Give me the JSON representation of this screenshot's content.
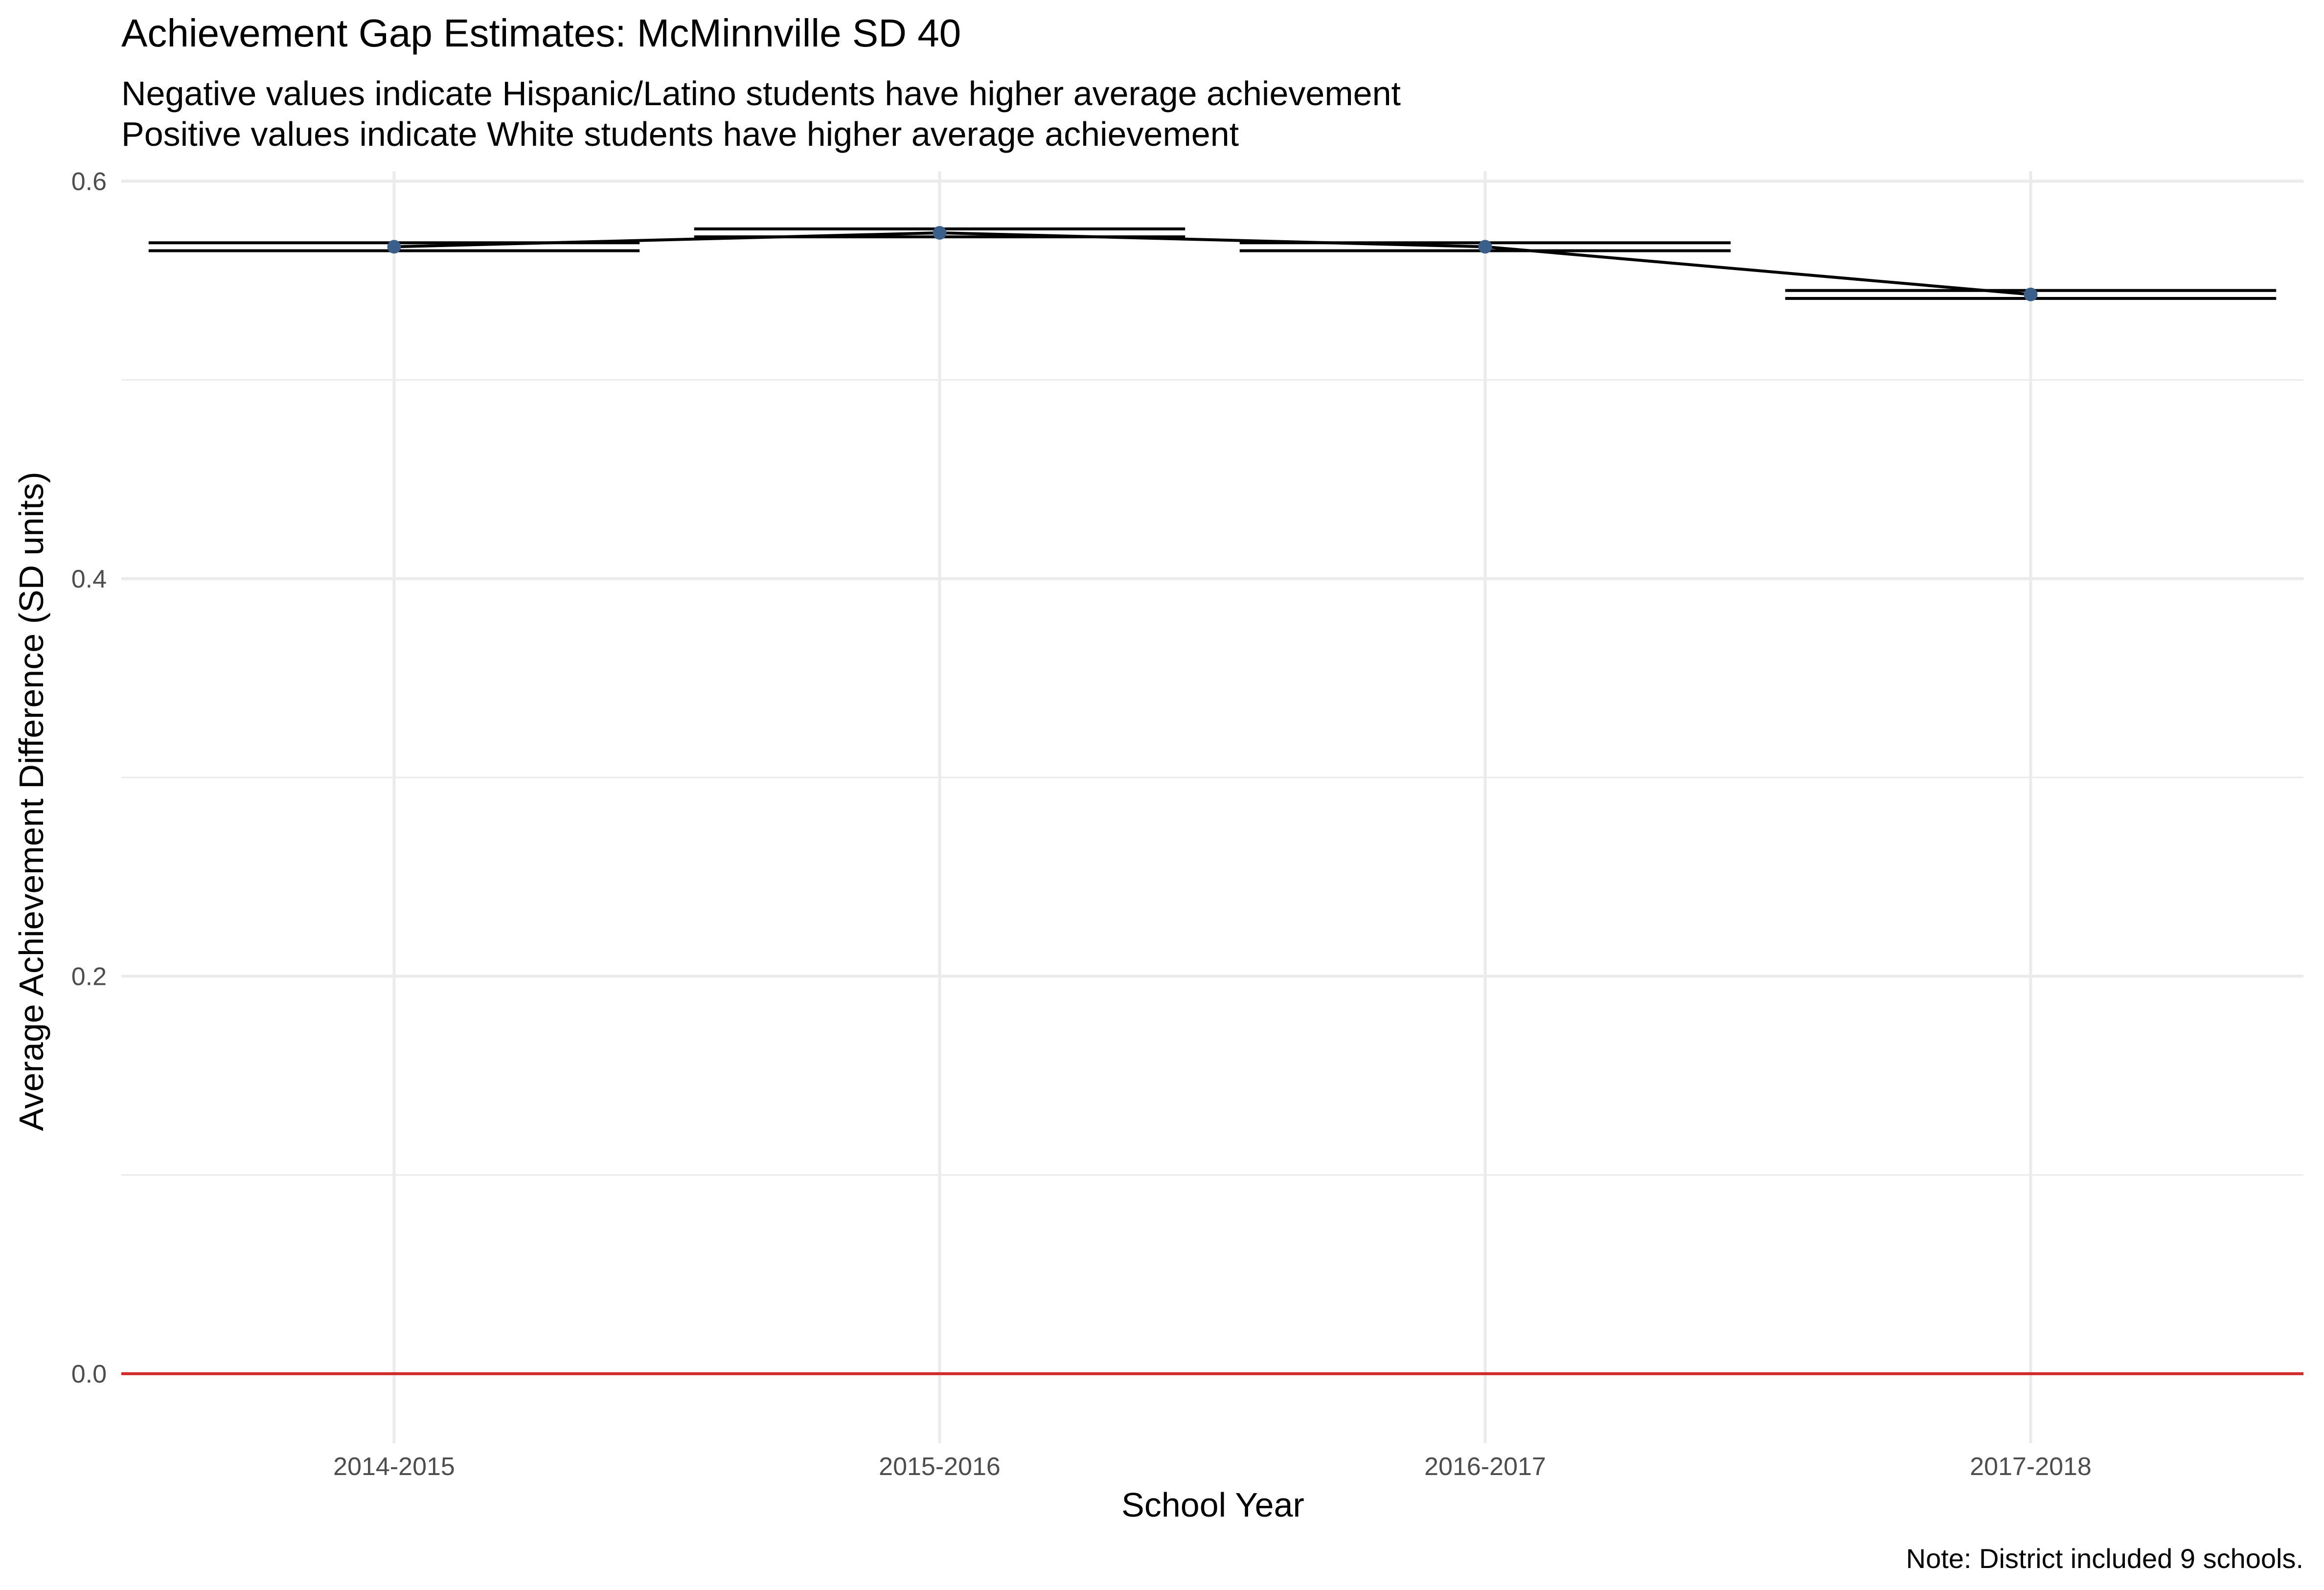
{
  "chart_data": {
    "type": "line",
    "title": "Achievement Gap Estimates: McMinnville SD 40",
    "subtitle_lines": [
      "Negative values indicate Hispanic/Latino students have higher average achievement",
      "Positive values indicate White students have higher average achievement"
    ],
    "xlabel": "School Year",
    "ylabel": "Average Achievement Difference (SD units)",
    "caption": "Note: District included 9 schools.",
    "categories": [
      "2014-2015",
      "2015-2016",
      "2016-2017",
      "2017-2018"
    ],
    "series": [
      {
        "values": [
          0.567,
          0.574,
          0.567,
          0.543
        ],
        "ci_lower": [
          0.565,
          0.572,
          0.565,
          0.541
        ],
        "ci_upper": [
          0.569,
          0.576,
          0.569,
          0.545
        ]
      }
    ],
    "yticks": [
      0.0,
      0.2,
      0.4,
      0.6
    ],
    "ytick_labels": [
      "0.0",
      "0.2",
      "0.4",
      "0.6"
    ],
    "ylim": [
      -0.035,
      0.605
    ],
    "reference_line": 0,
    "grid": true,
    "colors": {
      "line": "#000000",
      "point": "#3a5f8a",
      "reference": "#d12a2a",
      "grid": "#ebebeb",
      "tick_text": "#4d4d4d"
    }
  }
}
